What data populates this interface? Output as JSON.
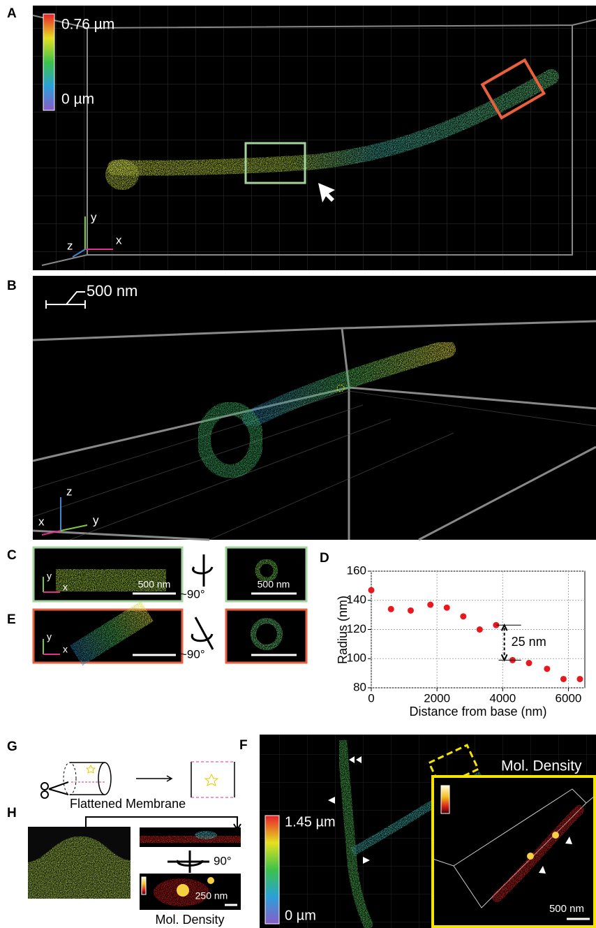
{
  "panels": {
    "a": {
      "label": "A",
      "scale_max": "0.76 µm",
      "scale_min": "0 µm",
      "axis_y": "y",
      "axis_z": "z",
      "axis_x": "x"
    },
    "b": {
      "label": "B",
      "scale_bar": "500 nm",
      "axis_z": "z",
      "axis_x": "x",
      "axis_y": "y"
    },
    "c": {
      "label": "C",
      "axis_y": "y",
      "axis_x": "x",
      "scale_bar_1": "500 nm",
      "rotation": "~90°",
      "scale_bar_2": "500 nm"
    },
    "e": {
      "label": "E",
      "axis_y": "y",
      "axis_x": "x",
      "rotation": "~90°"
    },
    "g": {
      "label": "G",
      "caption": "Flattened Membrane"
    },
    "h": {
      "label": "H",
      "rotation": "90°",
      "scale_bar": "250 nm",
      "caption": "Mol. Density"
    },
    "f": {
      "label": "F",
      "scale_max": "1.45 µm",
      "scale_min": "0 µm",
      "inset_title": "Mol. Density",
      "scale_bar": "500 nm"
    }
  },
  "chart_data": {
    "type": "scatter",
    "label": "D",
    "x_label": "Distance from base (nm)",
    "y_label": "Radius (nm)",
    "x": [
      0,
      600,
      1200,
      1800,
      2300,
      2800,
      3300,
      3800,
      4300,
      4800,
      5350,
      5850,
      6350
    ],
    "values": [
      147,
      134,
      133,
      137,
      135,
      129,
      120,
      123,
      99,
      97,
      93,
      86,
      86
    ],
    "color": "#e8191e",
    "xlim": [
      0,
      6500
    ],
    "ylim": [
      80,
      160
    ],
    "xticks": [
      0,
      2000,
      4000,
      6000
    ],
    "yticks": [
      80,
      100,
      120,
      140,
      160
    ],
    "grid": true,
    "annotation": "25 nm"
  }
}
